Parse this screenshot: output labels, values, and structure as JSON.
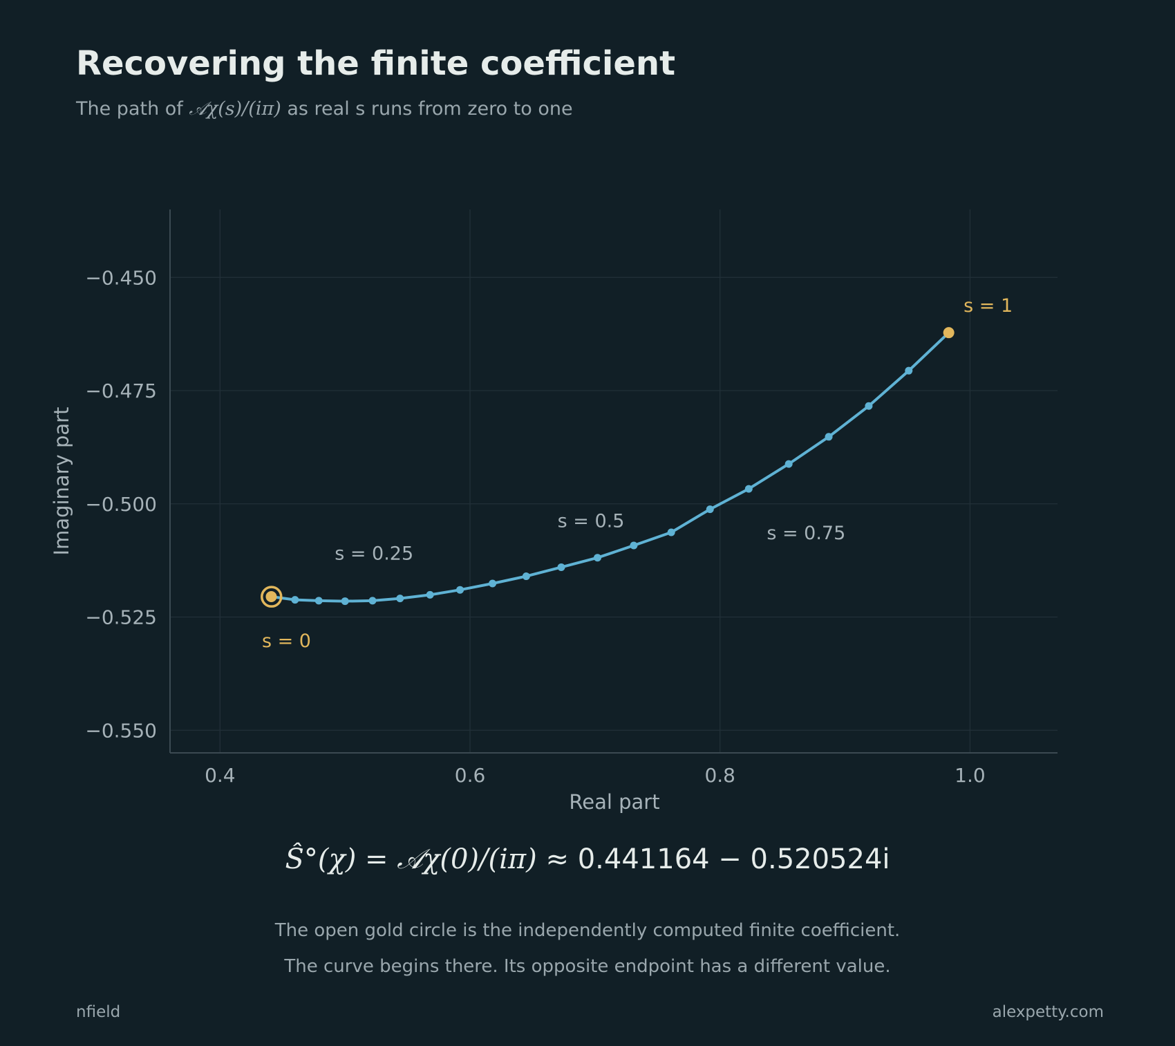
{
  "title": "Recovering the finite coefficient",
  "subtitle": {
    "prefix": "The path of ",
    "math": "𝒜χ(s)/(iπ)",
    "suffix": " as real s runs from zero to one"
  },
  "colors": {
    "background": "#111f26",
    "curve": "#5fb2d4",
    "gold": "#e2b75c",
    "text": "#e6ecea",
    "muted": "#a6b2b8"
  },
  "chart_data": {
    "type": "line",
    "xlabel": "Real part",
    "ylabel": "Imaginary part",
    "xlim": [
      0.36,
      1.07
    ],
    "ylim": [
      -0.555,
      -0.435
    ],
    "xticks": [
      0.4,
      0.6,
      0.8,
      1.0
    ],
    "xtick_labels": [
      "0.4",
      "0.6",
      "0.8",
      "1.0"
    ],
    "yticks": [
      -0.45,
      -0.475,
      -0.5,
      -0.525,
      -0.55
    ],
    "ytick_labels": [
      "−0.450",
      "−0.475",
      "−0.500",
      "−0.525",
      "−0.550"
    ],
    "grid": true,
    "series": [
      {
        "x": [
          0.441,
          0.46,
          0.479,
          0.5,
          0.522,
          0.544,
          0.568,
          0.592,
          0.618,
          0.645,
          0.673,
          0.702,
          0.731,
          0.761,
          0.792,
          0.823,
          0.855,
          0.887,
          0.919,
          0.951,
          0.983
        ],
        "y": [
          -0.5205,
          -0.5212,
          -0.5214,
          -0.5215,
          -0.5214,
          -0.5209,
          -0.5201,
          -0.519,
          -0.5176,
          -0.516,
          -0.514,
          -0.5119,
          -0.5092,
          -0.5063,
          -0.5012,
          -0.4967,
          -0.4912,
          -0.4852,
          -0.4784,
          -0.4706,
          -0.4622
        ]
      }
    ],
    "annotations": [
      {
        "text": "s = 0",
        "x": 0.441,
        "y": -0.5205,
        "color": "gold"
      },
      {
        "text": "s = 0.25",
        "x": 0.5,
        "y": -0.5215,
        "color": "gray"
      },
      {
        "text": "s = 0.5",
        "x": 0.673,
        "y": -0.514,
        "color": "gray"
      },
      {
        "text": "s = 0.75",
        "x": 0.823,
        "y": -0.4967,
        "color": "gray"
      },
      {
        "text": "s = 1",
        "x": 0.983,
        "y": -0.4622,
        "color": "gold"
      }
    ],
    "highlight": {
      "x": 0.441164,
      "y": -0.520524,
      "marker": "open-gold-circle"
    }
  },
  "formula": {
    "lhs": "Ŝ°(χ) = ",
    "mid": "𝒜χ(0)/(iπ)",
    "rhs": " ≈ 0.441164 − 0.520524i"
  },
  "notes": [
    "The open gold circle is the independently computed finite coefficient.",
    "The curve begins there. Its opposite endpoint has a different value."
  ],
  "footer": {
    "left": "nfield",
    "right": "alexpetty.com"
  }
}
